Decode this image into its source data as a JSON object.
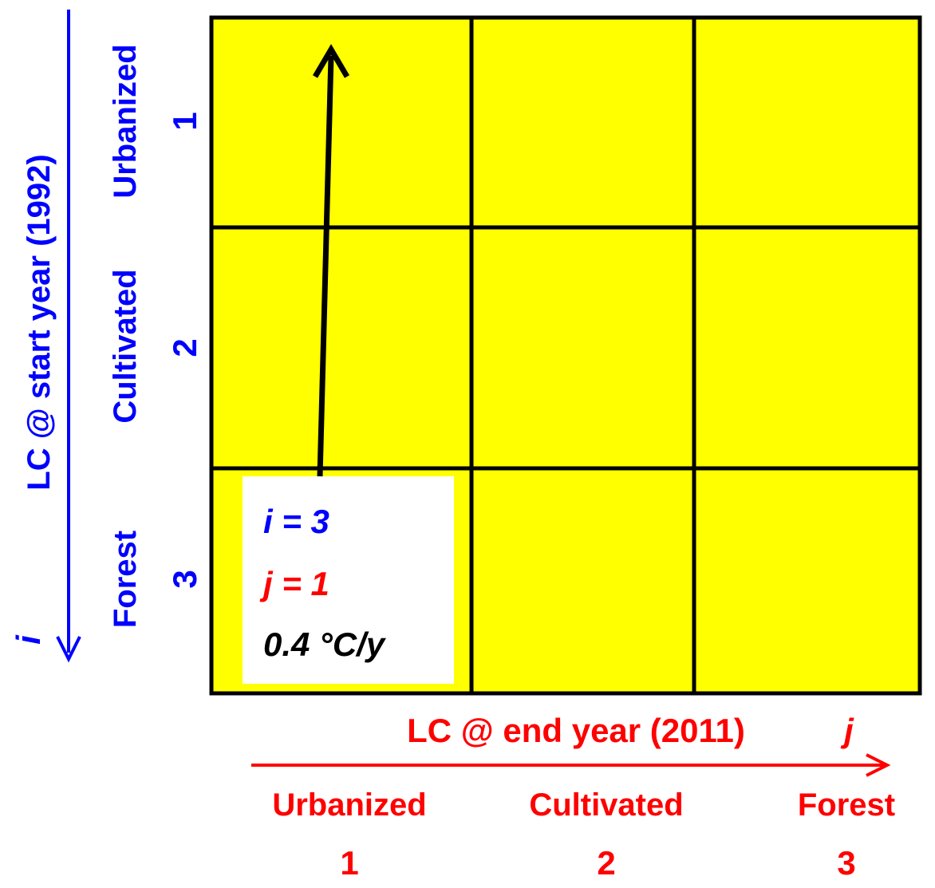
{
  "colors": {
    "cell_fill": "#ffff00",
    "grid_line": "#000000",
    "start_axis": "#0000ff",
    "end_axis": "#ff0000",
    "annotation_box": "#ffffff"
  },
  "start_axis": {
    "title": "LC @ start year (1992)",
    "index_symbol": "i",
    "rows": [
      {
        "name": "Urbanized",
        "index": "1"
      },
      {
        "name": "Cultivated",
        "index": "2"
      },
      {
        "name": "Forest",
        "index": "3"
      }
    ]
  },
  "end_axis": {
    "title": "LC @ end year (2011)",
    "index_symbol": "j",
    "columns": [
      {
        "name": "Urbanized",
        "index": "1"
      },
      {
        "name": "Cultivated",
        "index": "2"
      },
      {
        "name": "Forest",
        "index": "3"
      }
    ]
  },
  "annotation": {
    "i_text": "i = 3",
    "j_text": "j = 1",
    "rate_text": "0.4 °C/y"
  }
}
